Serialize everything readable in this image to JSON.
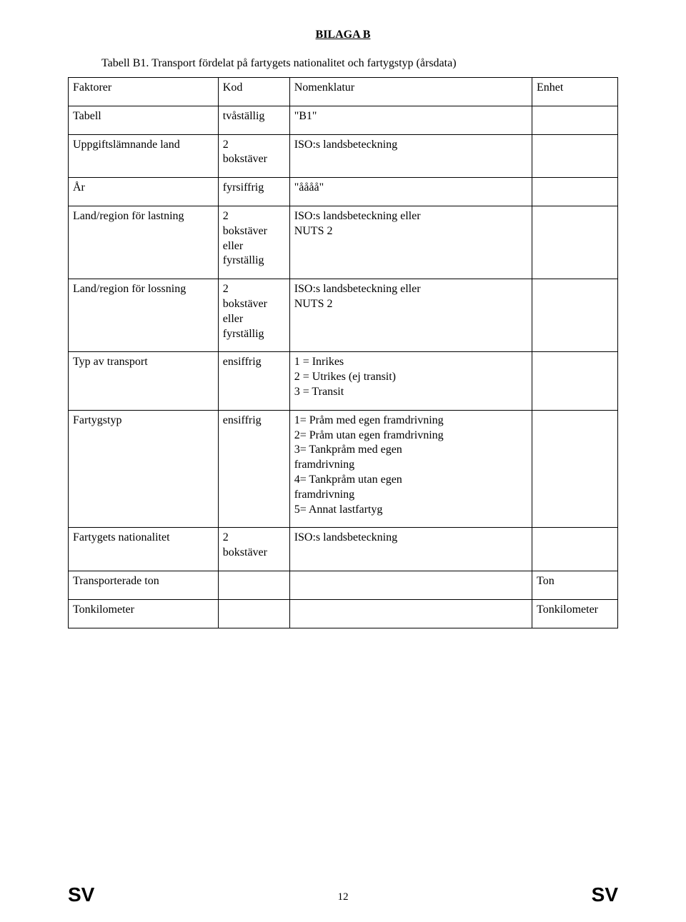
{
  "title": "BILAGA B",
  "subtitle": "Tabell B1. Transport fördelat på fartygets nationalitet och fartygstyp (årsdata)",
  "table": {
    "rows": [
      {
        "c1": "Faktorer",
        "c2": "Kod",
        "c3": "Nomenklatur",
        "c4": "Enhet"
      },
      {
        "c1": "Tabell",
        "c2": "tvåställig",
        "c3": "\"B1\"",
        "c4": ""
      },
      {
        "c1": "Uppgiftslämnande land",
        "c2": "2\nbokstäver",
        "c3": "ISO:s landsbeteckning",
        "c4": ""
      },
      {
        "c1": "År",
        "c2": "fyrsiffrig",
        "c3": "\"åååå\"",
        "c4": ""
      },
      {
        "c1": "Land/region för lastning",
        "c2": "2\nbokstäver\neller\nfyrställig",
        "c3": "ISO:s landsbeteckning eller\nNUTS 2",
        "c4": ""
      },
      {
        "c1": "Land/region för lossning",
        "c2": "2\nbokstäver\neller\nfyrställig",
        "c3": "ISO:s landsbeteckning eller\nNUTS 2",
        "c4": ""
      },
      {
        "c1": "Typ av transport",
        "c2": "ensiffrig",
        "c3": "1 = Inrikes\n2 = Utrikes (ej transit)\n3 = Transit",
        "c4": ""
      },
      {
        "c1": "Fartygstyp",
        "c2": "ensiffrig",
        "c3": "1= Pråm med egen framdrivning\n2= Pråm utan egen framdrivning\n3= Tankpråm med egen\nframdrivning\n4= Tankpråm utan egen\nframdrivning\n5= Annat lastfartyg",
        "c4": ""
      },
      {
        "c1": "Fartygets nationalitet",
        "c2": "2\nbokstäver",
        "c3": "ISO:s landsbeteckning",
        "c4": ""
      },
      {
        "c1": "Transporterade ton",
        "c2": "",
        "c3": "",
        "c4": "Ton"
      },
      {
        "c1": "Tonkilometer",
        "c2": "",
        "c3": "",
        "c4": "Tonkilometer"
      }
    ]
  },
  "footer": {
    "left": "SV",
    "pagenum": "12",
    "right": "SV"
  }
}
